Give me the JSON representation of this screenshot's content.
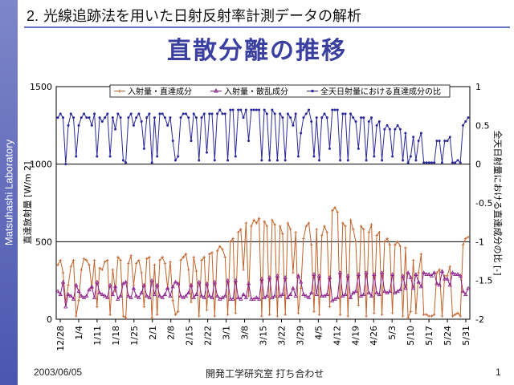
{
  "sidebar": {
    "text": "Matsuhashi Laboratory"
  },
  "header": {
    "number": "2.",
    "title": "光線追跡法を用いた日射反射率計測データの解析"
  },
  "slide": {
    "title": "直散分離の推移"
  },
  "footer": {
    "date": "2003/06/05",
    "center": "開発工学研究室 打ち合わせ",
    "page": "1"
  },
  "chart_data": {
    "type": "line",
    "ylabel_left": "直達放射量 [W/m 2]",
    "ylabel_right": "全天日射量における直達成分の比 [-]",
    "left_axis": {
      "min": 0,
      "max": 1500,
      "ticks": [
        0,
        500,
        1000,
        1500
      ]
    },
    "right_axis": {
      "min": -2,
      "max": 1,
      "ticks": [
        1,
        0.5,
        0,
        -0.5,
        -1,
        -1.5,
        -2
      ]
    },
    "x_ticks": [
      "12/28",
      "1/4",
      "1/11",
      "1/18",
      "1/25",
      "2/1",
      "2/8",
      "2/15",
      "2/22",
      "3/1",
      "3/8",
      "3/15",
      "3/22",
      "3/29",
      "4/5",
      "4/12",
      "4/19",
      "4/26",
      "5/3",
      "5/10",
      "5/17",
      "5/24",
      "5/31"
    ],
    "legend": [
      "入射量・直達成分",
      "入射量・散乱成分",
      "全天日射量における直達成分の比"
    ],
    "colors": {
      "direct": "#c0622a",
      "diffuse": "#8a1f8a",
      "ratio": "#2a2a9a"
    },
    "series": [
      {
        "name": "入射量・直達成分",
        "axis": "left",
        "values": [
          350,
          380,
          300,
          110,
          220,
          340,
          380,
          20,
          120,
          320,
          390,
          380,
          350,
          200,
          380,
          80,
          330,
          320,
          370,
          380,
          30,
          320,
          180,
          400,
          380,
          20,
          10,
          360,
          410,
          220,
          360,
          380,
          300,
          80,
          390,
          400,
          10,
          350,
          30,
          380,
          400,
          360,
          200,
          370,
          120,
          30,
          50,
          380,
          400,
          420,
          320,
          110,
          400,
          310,
          20,
          380,
          400,
          60,
          420,
          430,
          20,
          440,
          470,
          450,
          400,
          30,
          500,
          520,
          40,
          560,
          580,
          320,
          620,
          150,
          600,
          640,
          620,
          650,
          20,
          630,
          600,
          30,
          640,
          610,
          20,
          600,
          550,
          30,
          620,
          580,
          300,
          560,
          40,
          200,
          520,
          600,
          620,
          480,
          50,
          580,
          30,
          540,
          600,
          560,
          80,
          700,
          720,
          690,
          30,
          620,
          600,
          20,
          640,
          580,
          500,
          90,
          600,
          580,
          20,
          560,
          610,
          40,
          540,
          560,
          30,
          500,
          520,
          480,
          40,
          480,
          500,
          470,
          20,
          460,
          10,
          50,
          380,
          40,
          300,
          420,
          30,
          30,
          20,
          20,
          30,
          300,
          320,
          20,
          280,
          280,
          340,
          20,
          30,
          40,
          20,
          480,
          520,
          530
        ]
      },
      {
        "name": "入射量・散乱成分",
        "axis": "left",
        "values": [
          180,
          160,
          240,
          80,
          160,
          150,
          130,
          220,
          180,
          150,
          140,
          150,
          190,
          210,
          140,
          240,
          170,
          160,
          150,
          140,
          220,
          160,
          210,
          130,
          150,
          230,
          240,
          150,
          140,
          200,
          150,
          140,
          170,
          220,
          150,
          140,
          250,
          160,
          220,
          150,
          140,
          160,
          200,
          150,
          210,
          240,
          230,
          150,
          140,
          150,
          170,
          220,
          140,
          160,
          240,
          150,
          140,
          230,
          150,
          140,
          240,
          150,
          130,
          140,
          150,
          250,
          130,
          130,
          250,
          140,
          130,
          160,
          140,
          230,
          130,
          130,
          140,
          130,
          260,
          140,
          150,
          270,
          140,
          150,
          280,
          150,
          160,
          270,
          140,
          160,
          200,
          150,
          280,
          240,
          160,
          150,
          140,
          170,
          290,
          160,
          280,
          150,
          150,
          160,
          270,
          120,
          130,
          140,
          300,
          150,
          160,
          280,
          140,
          170,
          180,
          290,
          150,
          160,
          300,
          170,
          150,
          290,
          170,
          160,
          300,
          180,
          170,
          180,
          290,
          170,
          180,
          190,
          280,
          200,
          300,
          270,
          200,
          290,
          240,
          210,
          300,
          290,
          290,
          280,
          300,
          230,
          220,
          310,
          260,
          260,
          220,
          300,
          290,
          290,
          280,
          180,
          160,
          200
        ]
      },
      {
        "name": "全天日射量における直達成分の比",
        "axis": "right",
        "values": [
          0.6,
          0.65,
          0.6,
          0.0,
          0.5,
          0.65,
          0.6,
          0.1,
          0.5,
          0.6,
          0.65,
          0.6,
          0.6,
          0.5,
          0.65,
          0.1,
          0.6,
          0.55,
          0.6,
          0.65,
          0.1,
          0.6,
          0.45,
          0.65,
          0.6,
          0.05,
          0.02,
          0.6,
          0.65,
          0.5,
          0.6,
          0.65,
          0.55,
          0.2,
          0.6,
          0.65,
          0.02,
          0.6,
          0.1,
          0.65,
          0.65,
          0.6,
          0.5,
          0.6,
          0.3,
          0.05,
          0.1,
          0.6,
          0.65,
          0.65,
          0.6,
          0.3,
          0.65,
          0.6,
          0.05,
          0.6,
          0.65,
          0.15,
          0.65,
          0.65,
          0.05,
          0.65,
          0.7,
          0.65,
          0.65,
          0.05,
          0.7,
          0.7,
          0.1,
          0.7,
          0.7,
          0.6,
          0.7,
          0.3,
          0.7,
          0.7,
          0.7,
          0.7,
          0.05,
          0.7,
          0.65,
          0.05,
          0.7,
          0.65,
          0.05,
          0.65,
          0.6,
          0.05,
          0.65,
          0.6,
          0.5,
          0.65,
          0.1,
          0.4,
          0.6,
          0.65,
          0.7,
          0.55,
          0.1,
          0.6,
          0.05,
          0.6,
          0.65,
          0.6,
          0.2,
          0.7,
          0.7,
          0.7,
          0.05,
          0.65,
          0.65,
          0.05,
          0.65,
          0.6,
          0.55,
          0.2,
          0.6,
          0.6,
          0.05,
          0.55,
          0.6,
          0.1,
          0.5,
          0.55,
          0.05,
          0.45,
          0.5,
          0.45,
          0.1,
          0.45,
          0.5,
          0.45,
          0.05,
          0.4,
          0.02,
          0.1,
          0.35,
          0.05,
          0.3,
          0.4,
          0.02,
          0.02,
          0.02,
          0.02,
          0.02,
          0.3,
          0.3,
          0.02,
          0.3,
          0.3,
          0.35,
          0.02,
          0.02,
          0.05,
          0.02,
          0.5,
          0.55,
          0.6
        ]
      }
    ]
  }
}
